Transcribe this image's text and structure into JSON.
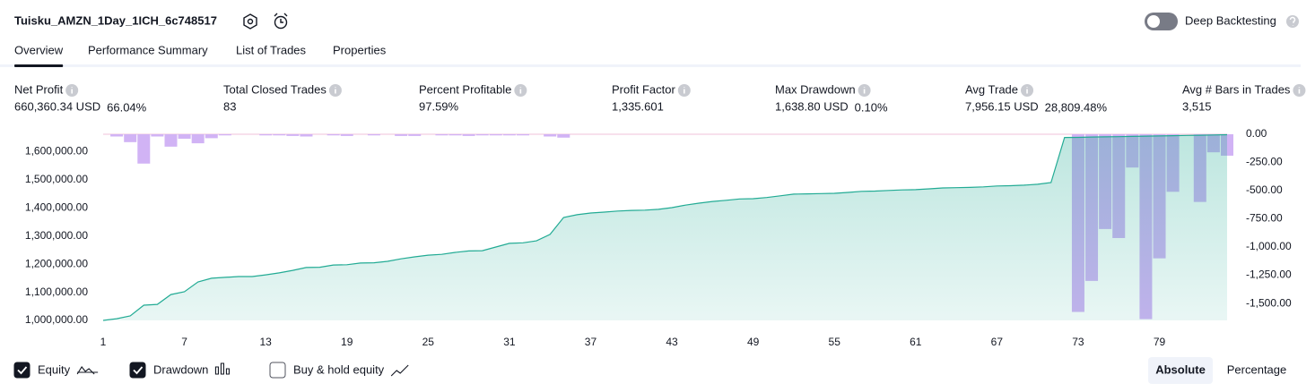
{
  "header": {
    "title": "Tuisku_AMZN_1Day_1ICH_6c748517",
    "deep_backtesting": "Deep Backtesting",
    "deep_backtesting_on": false
  },
  "tabs": [
    "Overview",
    "Performance Summary",
    "List of Trades",
    "Properties"
  ],
  "active_tab": 0,
  "stats": [
    {
      "label": "Net Profit",
      "value": "660,360.34 USD",
      "extra": "66.04%",
      "color": "#089981"
    },
    {
      "label": "Total Closed Trades",
      "value": "83",
      "color": "#131722"
    },
    {
      "label": "Percent Profitable",
      "value": "97.59%",
      "color": "#089981"
    },
    {
      "label": "Profit Factor",
      "value": "1,335.601",
      "color": "#089981"
    },
    {
      "label": "Max Drawdown",
      "value": "1,638.80 USD",
      "extra": "0.10%",
      "color": "#f23645"
    },
    {
      "label": "Avg Trade",
      "value": "7,956.15 USD",
      "extra": "28,809.48%",
      "color": "#089981"
    },
    {
      "label": "Avg # Bars in Trades",
      "value": "3,515",
      "color": "#131722"
    }
  ],
  "chart_data": {
    "type": "combo",
    "x": [
      1,
      2,
      3,
      4,
      5,
      6,
      7,
      8,
      9,
      10,
      11,
      12,
      13,
      14,
      15,
      16,
      17,
      18,
      19,
      20,
      21,
      22,
      23,
      24,
      25,
      26,
      27,
      28,
      29,
      30,
      31,
      32,
      33,
      34,
      35,
      36,
      37,
      38,
      39,
      40,
      41,
      42,
      43,
      44,
      45,
      46,
      47,
      48,
      49,
      50,
      51,
      52,
      53,
      54,
      55,
      56,
      57,
      58,
      59,
      60,
      61,
      62,
      63,
      64,
      65,
      66,
      67,
      68,
      69,
      70,
      71,
      72,
      73,
      74,
      75,
      76,
      77,
      78,
      79,
      80,
      81,
      82,
      83,
      84
    ],
    "xlim": [
      1,
      84
    ],
    "xticks": [
      1,
      7,
      13,
      19,
      25,
      31,
      37,
      43,
      49,
      55,
      61,
      67,
      73,
      79
    ],
    "ylim": [
      1000000,
      1662000
    ],
    "yticks": [
      {
        "value": 1000000,
        "label": "1,000,000.00"
      },
      {
        "value": 1100000,
        "label": "1,100,000.00"
      },
      {
        "value": 1200000,
        "label": "1,200,000.00"
      },
      {
        "value": 1300000,
        "label": "1,300,000.00"
      },
      {
        "value": 1400000,
        "label": "1,400,000.00"
      },
      {
        "value": 1500000,
        "label": "1,500,000.00"
      },
      {
        "value": 1600000,
        "label": "1,600,000.00"
      }
    ],
    "y2lim": [
      -1650,
      0
    ],
    "y2ticks": [
      {
        "value": 0,
        "label": "0.00"
      },
      {
        "value": -250,
        "label": "-250.00"
      },
      {
        "value": -500,
        "label": "-500.00"
      },
      {
        "value": -750,
        "label": "-750.00"
      },
      {
        "value": -1000,
        "label": "-1,000.00"
      },
      {
        "value": -1250,
        "label": "-1,250.00"
      },
      {
        "value": -1500,
        "label": "-1,500.00"
      }
    ],
    "series": [
      {
        "name": "Equity",
        "color": "#22ab94",
        "checked": true,
        "values": [
          1000000,
          1006000,
          1016000,
          1054000,
          1057000,
          1092000,
          1102000,
          1137000,
          1150000,
          1153000,
          1156000,
          1156000,
          1162000,
          1169000,
          1178000,
          1188000,
          1189000,
          1197000,
          1198000,
          1204000,
          1205000,
          1210000,
          1219000,
          1226000,
          1232000,
          1235000,
          1242000,
          1247000,
          1248000,
          1261000,
          1274000,
          1276000,
          1283000,
          1306000,
          1366000,
          1376000,
          1382000,
          1385000,
          1389000,
          1391000,
          1392000,
          1395000,
          1401000,
          1410000,
          1417000,
          1423000,
          1427000,
          1432000,
          1433000,
          1437000,
          1443000,
          1449000,
          1450000,
          1451000,
          1452000,
          1455000,
          1459000,
          1460000,
          1462000,
          1464000,
          1465000,
          1468000,
          1471000,
          1472000,
          1473000,
          1475000,
          1478000,
          1479000,
          1481000,
          1484000,
          1490000,
          1650500,
          1651000,
          1652000,
          1652800,
          1653500,
          1654500,
          1655300,
          1656000,
          1657000,
          1657800,
          1658600,
          1659500,
          1660360.34
        ]
      },
      {
        "name": "Drawdown",
        "color": "#d1b3f5",
        "axis": "y2",
        "checked": true,
        "values": [
          0,
          -20,
          -70,
          -260,
          -20,
          -110,
          -40,
          -80,
          -35,
          -10,
          0,
          0,
          -10,
          -10,
          -15,
          -20,
          0,
          -10,
          -15,
          0,
          -10,
          0,
          -15,
          -15,
          0,
          -10,
          -10,
          -15,
          -10,
          -10,
          -10,
          -10,
          0,
          -20,
          -30,
          0,
          0,
          0,
          0,
          0,
          0,
          0,
          0,
          0,
          0,
          0,
          0,
          0,
          0,
          0,
          0,
          0,
          0,
          0,
          0,
          0,
          0,
          0,
          0,
          0,
          0,
          0,
          0,
          0,
          0,
          0,
          0,
          0,
          0,
          0,
          0,
          0,
          -1575,
          -1300,
          -840,
          -920,
          -295,
          -1638.8,
          -1100,
          -510,
          0,
          -600,
          -160,
          -190
        ]
      }
    ],
    "buy_hold": {
      "name": "Buy & hold equity",
      "checked": false
    }
  },
  "views": [
    "Absolute",
    "Percentage"
  ],
  "active_view": 0
}
